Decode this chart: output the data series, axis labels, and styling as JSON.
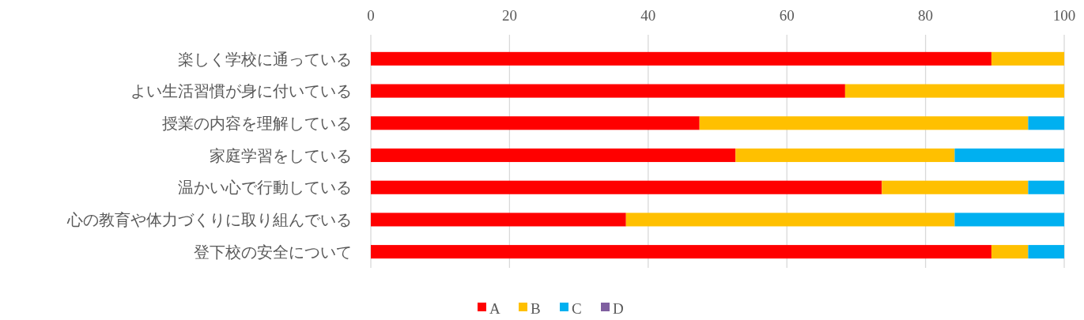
{
  "chart_data": {
    "type": "bar",
    "orientation": "horizontal",
    "stacked": true,
    "categories": [
      "楽しく学校に通っている",
      "よい生活習慣が身に付いている",
      "授業の内容を理解している",
      "家庭学習をしている",
      "温かい心で行動している",
      "心の教育や体力づくりに取り組んでいる",
      "登下校の安全について"
    ],
    "series": [
      {
        "name": "A",
        "color": "#ff0000",
        "values": [
          89.5,
          68.4,
          47.4,
          52.6,
          73.7,
          36.8,
          89.5
        ]
      },
      {
        "name": "B",
        "color": "#ffc000",
        "values": [
          10.5,
          31.6,
          47.4,
          31.6,
          21.1,
          47.4,
          5.3
        ]
      },
      {
        "name": "C",
        "color": "#00b0f0",
        "values": [
          0,
          0,
          5.2,
          15.8,
          5.2,
          15.8,
          5.2
        ]
      },
      {
        "name": "D",
        "color": "#7f5fa0",
        "values": [
          0,
          0,
          0,
          0,
          0,
          0,
          0
        ]
      }
    ],
    "xlim": [
      0,
      100
    ],
    "xticks": [
      0,
      20,
      40,
      60,
      80,
      100
    ],
    "grid": "x",
    "legend": "bottom"
  }
}
